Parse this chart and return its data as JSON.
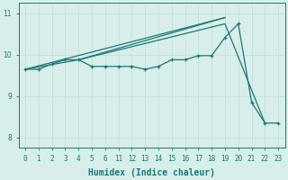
{
  "xlabel": "Humidex (Indice chaleur)",
  "bg_color": "#d8eeeb",
  "line_color": "#1a7a6e",
  "grid_color": "#c0ddd8",
  "ylim": [
    7.75,
    11.25
  ],
  "yticks": [
    8,
    9,
    10,
    11
  ],
  "categories": [
    0,
    1,
    2,
    3,
    4,
    5,
    6,
    11,
    12,
    13,
    14,
    15,
    16,
    17,
    18,
    19,
    20,
    21,
    22,
    23
  ],
  "line1_y": [
    9.65,
    9.65,
    9.78,
    9.88,
    9.88,
    9.72,
    9.72,
    9.72,
    9.72,
    9.65,
    9.72,
    9.88,
    9.88,
    9.98,
    9.98,
    10.42,
    10.75,
    8.85,
    8.35,
    8.35
  ],
  "line2_xi": [
    0,
    4,
    15,
    18
  ],
  "line2_y": [
    9.65,
    9.88,
    10.75,
    8.35
  ],
  "line3_xi": [
    4,
    15
  ],
  "line3_y": [
    9.88,
    10.9
  ],
  "line4_xi": [
    0,
    15
  ],
  "line4_y": [
    9.65,
    10.9
  ],
  "xlabel_fontsize": 7,
  "tick_fontsize": 5.5,
  "linewidth": 0.9,
  "marker_size": 3.5
}
